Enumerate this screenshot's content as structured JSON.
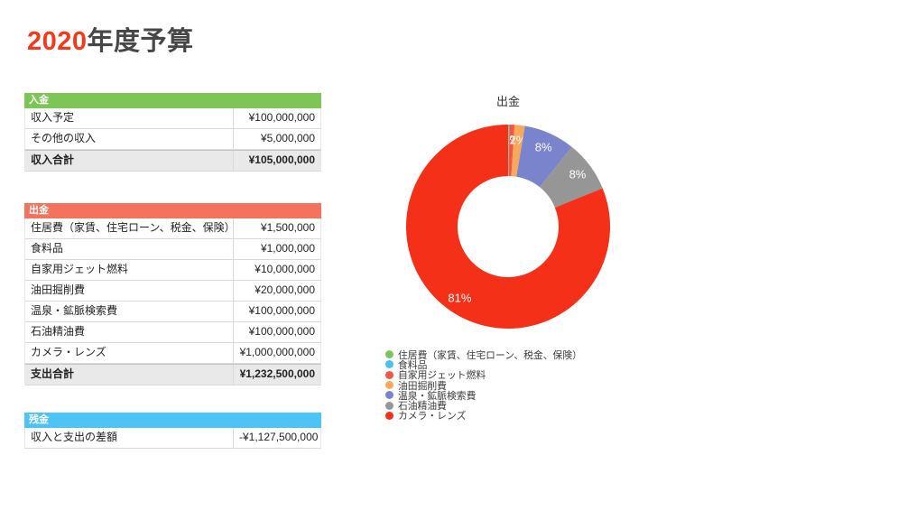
{
  "title": {
    "year": "2020",
    "rest": "年度予算"
  },
  "tables": [
    {
      "name": "income",
      "header": "入金",
      "header_color": "#7EC558",
      "rows": [
        {
          "label": "収入予定",
          "amount": "¥100,000,000",
          "total": false
        },
        {
          "label": "その他の収入",
          "amount": "¥5,000,000",
          "total": false
        },
        {
          "label": "収入合計",
          "amount": "¥105,000,000",
          "total": true
        }
      ]
    },
    {
      "name": "expense",
      "header": "出金",
      "header_color": "#F3735D",
      "rows": [
        {
          "label": "住居費（家賃、住宅ローン、税金、保険）",
          "amount": "¥1,500,000",
          "total": false
        },
        {
          "label": "食料品",
          "amount": "¥1,000,000",
          "total": false
        },
        {
          "label": "自家用ジェット燃料",
          "amount": "¥10,000,000",
          "total": false
        },
        {
          "label": "油田掘削費",
          "amount": "¥20,000,000",
          "total": false
        },
        {
          "label": "温泉・鉱脈検索費",
          "amount": "¥100,000,000",
          "total": false
        },
        {
          "label": "石油精油費",
          "amount": "¥100,000,000",
          "total": false
        },
        {
          "label": "カメラ・レンズ",
          "amount": "¥1,000,000,000",
          "total": false
        },
        {
          "label": "支出合計",
          "amount": "¥1,232,500,000",
          "total": true
        }
      ]
    },
    {
      "name": "balance",
      "header": "残金",
      "header_color": "#4EC4F6",
      "rows": [
        {
          "label": "収入と支出の差額",
          "amount": "-¥1,127,500,000",
          "total": false
        }
      ]
    }
  ],
  "chart_data": {
    "type": "pie",
    "donut": true,
    "title": "出金",
    "direction": "clockwise",
    "start_angle_deg": 0,
    "legend_position": "bottom-left",
    "total": 1232500000,
    "slices": [
      {
        "label": "住居費（家賃、住宅ローン、税金、保険）",
        "value": 1500000,
        "percent": 0.12,
        "percent_label": "",
        "color": "#7EC558"
      },
      {
        "label": "食料品",
        "value": 1000000,
        "percent": 0.08,
        "percent_label": "",
        "color": "#45C2F1"
      },
      {
        "label": "自家用ジェット燃料",
        "value": 10000000,
        "percent": 0.81,
        "percent_label": "1%",
        "color": "#F15744"
      },
      {
        "label": "油田掘削費",
        "value": 20000000,
        "percent": 1.62,
        "percent_label": "2%",
        "color": "#F8A95B"
      },
      {
        "label": "温泉・鉱脈検索費",
        "value": 100000000,
        "percent": 8.11,
        "percent_label": "8%",
        "color": "#7A84CC"
      },
      {
        "label": "石油精油費",
        "value": 100000000,
        "percent": 8.11,
        "percent_label": "8%",
        "color": "#969696"
      },
      {
        "label": "カメラ・レンズ",
        "value": 1000000000,
        "percent": 81.14,
        "percent_label": "81%",
        "color": "#F43019"
      }
    ]
  }
}
